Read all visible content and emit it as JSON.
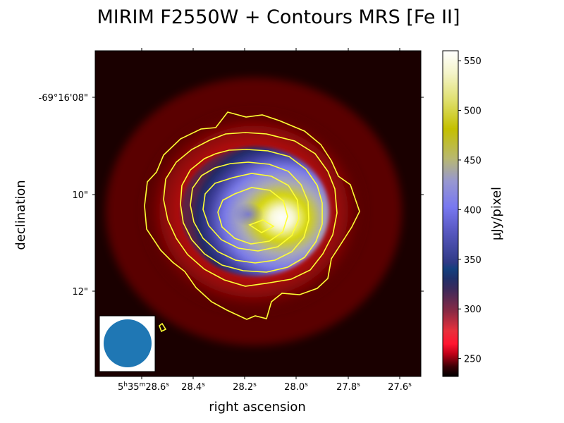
{
  "chart_data": {
    "type": "heatmap",
    "title": "MIRIM F2550W + Contours MRS [Fe II]",
    "xlabel": "right ascension",
    "ylabel": "declination",
    "x_ticks": [
      {
        "h": "5",
        "hu": "h",
        "m": "35",
        "mu": "m",
        "s": "28.6",
        "su": "s"
      },
      {
        "s": "28.4",
        "su": "s"
      },
      {
        "s": "28.2",
        "su": "s"
      },
      {
        "s": "28.0",
        "su": "s"
      },
      {
        "s": "27.8",
        "su": "s"
      },
      {
        "s": "27.6",
        "su": "s"
      }
    ],
    "y_ticks": [
      "-69°16'08\"",
      "10\"",
      "12\""
    ],
    "colorbar": {
      "label": "µJy/pixel",
      "range": [
        232,
        560
      ],
      "ticks": [
        250,
        300,
        350,
        400,
        450,
        500,
        550
      ],
      "colormap": "gist_stern-like (black-red-navy-blue-yellow-white)"
    },
    "image": {
      "description_values": "emission peak near RA 28.05s, Dec 10.5\"",
      "peak_value": 560,
      "background_value": 235
    },
    "contours": {
      "color": "#ffff33",
      "count": 7
    },
    "beam": {
      "shape": "circle",
      "color": "#1f77b4",
      "location": "bottom-left"
    }
  }
}
